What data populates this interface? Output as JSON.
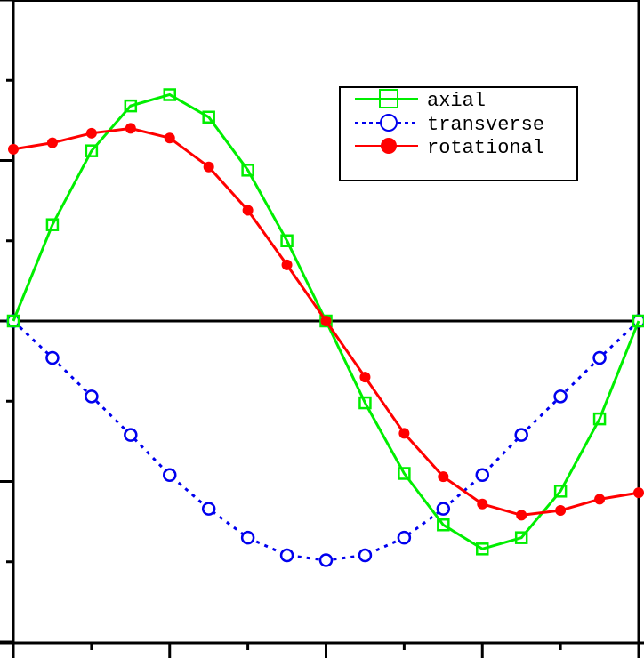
{
  "chart_data": {
    "type": "line",
    "title": "",
    "xlabel": "",
    "ylabel": "",
    "x": [
      0,
      0.0625,
      0.125,
      0.1875,
      0.25,
      0.3125,
      0.375,
      0.4375,
      0.5,
      0.5625,
      0.625,
      0.6875,
      0.75,
      0.8125,
      0.875,
      0.9375,
      1.0
    ],
    "xlim": [
      0,
      1
    ],
    "ylim": [
      -2,
      2
    ],
    "x_ticks_major": [
      0,
      0.25,
      0.5,
      0.75,
      1.0
    ],
    "x_ticks_minor": [
      0.125,
      0.375,
      0.625,
      0.875
    ],
    "y_ticks_major": [
      -2,
      -1,
      0,
      1,
      2
    ],
    "y_ticks_minor": [
      -1.5,
      -0.5,
      0.5,
      1.5
    ],
    "tick_labels_visible": false,
    "zero_line": true,
    "grid": false,
    "legend_position": "upper right",
    "series": [
      {
        "name": "axial",
        "color": "#00ee00",
        "line_style": "solid",
        "marker": "open-square",
        "values": [
          0.0,
          0.6,
          1.06,
          1.34,
          1.41,
          1.27,
          0.94,
          0.5,
          0.0,
          -0.51,
          -0.95,
          -1.27,
          -1.42,
          -1.35,
          -1.06,
          -0.61,
          0.0
        ]
      },
      {
        "name": "transverse",
        "color": "#0000ee",
        "line_style": "dotted",
        "marker": "open-circle",
        "values": [
          0.0,
          -0.23,
          -0.47,
          -0.71,
          -0.96,
          -1.17,
          -1.35,
          -1.46,
          -1.49,
          -1.46,
          -1.35,
          -1.17,
          -0.96,
          -0.71,
          -0.47,
          -0.23,
          0.0
        ]
      },
      {
        "name": "rotational",
        "color": "#ff0000",
        "line_style": "solid",
        "marker": "filled-circle",
        "values": [
          1.07,
          1.11,
          1.17,
          1.2,
          1.14,
          0.96,
          0.69,
          0.35,
          0.0,
          -0.35,
          -0.7,
          -0.97,
          -1.14,
          -1.21,
          -1.18,
          -1.11,
          -1.07
        ]
      }
    ]
  },
  "legend": {
    "items": [
      {
        "label": "axial"
      },
      {
        "label": "transverse"
      },
      {
        "label": "rotational"
      }
    ]
  }
}
